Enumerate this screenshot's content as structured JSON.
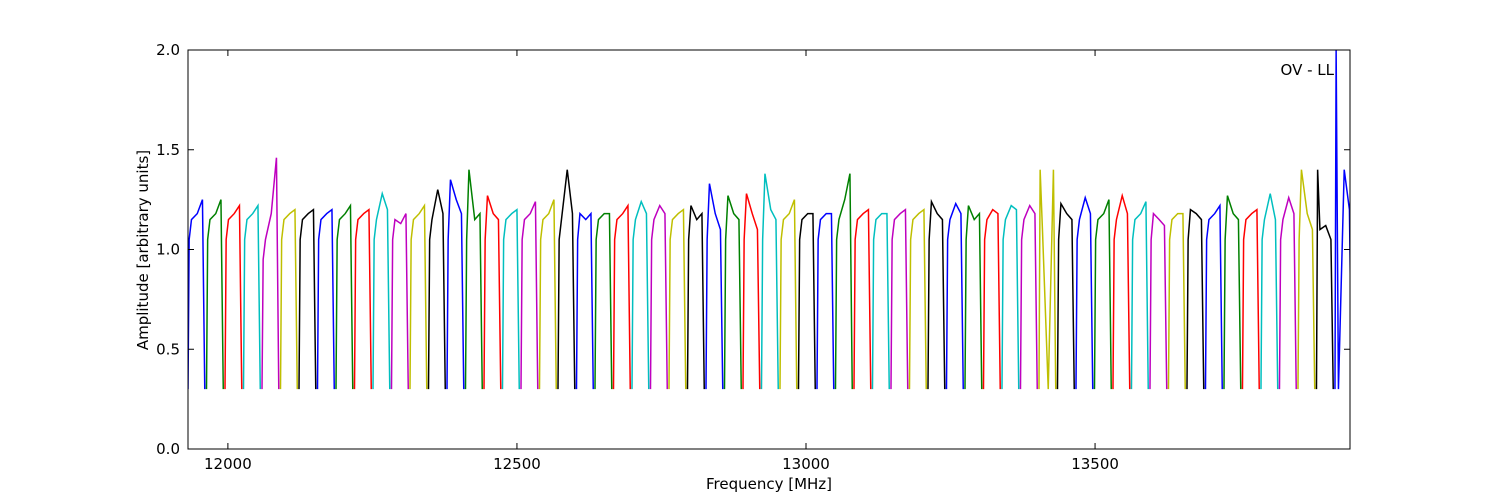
{
  "chart_data": {
    "type": "line",
    "xlabel": "Frequency [MHz]",
    "ylabel": "Amplitude [arbitrary units]",
    "annotation": "OV - LL",
    "xlim": [
      11931,
      13941
    ],
    "ylim": [
      0,
      2
    ],
    "xticks": [
      12000,
      12500,
      13000,
      13500
    ],
    "yticks": [
      {
        "value": 0,
        "label": "0.0"
      },
      {
        "value": 0.5,
        "label": "0.5"
      },
      {
        "value": 1,
        "label": "1.0"
      },
      {
        "value": 1.5,
        "label": "1.5"
      },
      {
        "value": 2,
        "label": "2.0"
      }
    ],
    "series": [
      {
        "color": "#0000ff",
        "x": [
          11931,
          11933,
          11937,
          11947,
          11956,
          11960
        ],
        "values": [
          0.3,
          1.05,
          1.15,
          1.18,
          1.25,
          0.3
        ]
      },
      {
        "color": "#008000",
        "x": [
          11963,
          11965,
          11969,
          11979,
          11988,
          11992
        ],
        "values": [
          0.3,
          1.05,
          1.15,
          1.18,
          1.25,
          0.3
        ]
      },
      {
        "color": "#ff0000",
        "x": [
          11995,
          11997,
          12001,
          12011,
          12020,
          12024
        ],
        "values": [
          0.3,
          1.05,
          1.15,
          1.18,
          1.22,
          0.3
        ]
      },
      {
        "color": "#00bfbf",
        "x": [
          12027,
          12029,
          12033,
          12043,
          12052,
          12056
        ],
        "values": [
          0.3,
          1.05,
          1.15,
          1.18,
          1.22,
          0.3
        ]
      },
      {
        "color": "#bf00bf",
        "x": [
          12059,
          12061,
          12065,
          12075,
          12084,
          12088
        ],
        "values": [
          0.3,
          0.95,
          1.05,
          1.18,
          1.46,
          0.3
        ]
      },
      {
        "color": "#bfbf00",
        "x": [
          12091,
          12093,
          12097,
          12107,
          12116,
          12120
        ],
        "values": [
          0.3,
          1.05,
          1.15,
          1.18,
          1.2,
          0.3
        ]
      },
      {
        "color": "#000000",
        "x": [
          12123,
          12125,
          12129,
          12139,
          12148,
          12152
        ],
        "values": [
          0.3,
          1.05,
          1.15,
          1.18,
          1.2,
          0.3
        ]
      },
      {
        "color": "#0000ff",
        "x": [
          12155,
          12157,
          12161,
          12171,
          12180,
          12184
        ],
        "values": [
          0.3,
          1.05,
          1.15,
          1.18,
          1.2,
          0.3
        ]
      },
      {
        "color": "#008000",
        "x": [
          12187,
          12189,
          12193,
          12203,
          12212,
          12216
        ],
        "values": [
          0.3,
          1.05,
          1.15,
          1.18,
          1.22,
          0.3
        ]
      },
      {
        "color": "#ff0000",
        "x": [
          12219,
          12221,
          12225,
          12235,
          12244,
          12248
        ],
        "values": [
          0.3,
          1.05,
          1.15,
          1.18,
          1.2,
          0.3
        ]
      },
      {
        "color": "#00bfbf",
        "x": [
          12251,
          12253,
          12257,
          12267,
          12276,
          12280
        ],
        "values": [
          0.3,
          1.05,
          1.15,
          1.28,
          1.2,
          0.3
        ]
      },
      {
        "color": "#bf00bf",
        "x": [
          12283,
          12285,
          12289,
          12299,
          12308,
          12312
        ],
        "values": [
          0.3,
          1.05,
          1.15,
          1.13,
          1.18,
          0.3
        ]
      },
      {
        "color": "#bfbf00",
        "x": [
          12315,
          12317,
          12321,
          12331,
          12340,
          12344
        ],
        "values": [
          0.3,
          1.05,
          1.15,
          1.18,
          1.22,
          0.3
        ]
      },
      {
        "color": "#000000",
        "x": [
          12347,
          12349,
          12353,
          12363,
          12372,
          12376
        ],
        "values": [
          0.3,
          1.05,
          1.15,
          1.3,
          1.18,
          0.3
        ]
      },
      {
        "color": "#0000ff",
        "x": [
          12379,
          12381,
          12385,
          12395,
          12404,
          12408
        ],
        "values": [
          0.3,
          1.05,
          1.35,
          1.25,
          1.18,
          0.3
        ]
      },
      {
        "color": "#008000",
        "x": [
          12411,
          12413,
          12417,
          12427,
          12436,
          12440
        ],
        "values": [
          0.3,
          1.05,
          1.4,
          1.15,
          1.18,
          0.3
        ]
      },
      {
        "color": "#ff0000",
        "x": [
          12443,
          12445,
          12449,
          12459,
          12468,
          12472
        ],
        "values": [
          0.3,
          1.05,
          1.27,
          1.18,
          1.15,
          0.3
        ]
      },
      {
        "color": "#00bfbf",
        "x": [
          12475,
          12477,
          12481,
          12491,
          12500,
          12504
        ],
        "values": [
          0.3,
          1.05,
          1.15,
          1.18,
          1.2,
          0.3
        ]
      },
      {
        "color": "#bf00bf",
        "x": [
          12507,
          12509,
          12513,
          12523,
          12532,
          12536
        ],
        "values": [
          0.3,
          1.05,
          1.15,
          1.18,
          1.24,
          0.3
        ]
      },
      {
        "color": "#bfbf00",
        "x": [
          12539,
          12541,
          12545,
          12555,
          12564,
          12568
        ],
        "values": [
          0.3,
          1.05,
          1.15,
          1.18,
          1.25,
          0.3
        ]
      },
      {
        "color": "#000000",
        "x": [
          12571,
          12573,
          12577,
          12587,
          12596,
          12600
        ],
        "values": [
          0.3,
          1.05,
          1.15,
          1.4,
          1.18,
          0.3
        ]
      },
      {
        "color": "#0000ff",
        "x": [
          12603,
          12605,
          12609,
          12619,
          12628,
          12632
        ],
        "values": [
          0.3,
          1.05,
          1.18,
          1.15,
          1.18,
          0.3
        ]
      },
      {
        "color": "#008000",
        "x": [
          12635,
          12637,
          12641,
          12651,
          12660,
          12664
        ],
        "values": [
          0.3,
          1.05,
          1.15,
          1.18,
          1.18,
          0.3
        ]
      },
      {
        "color": "#ff0000",
        "x": [
          12667,
          12669,
          12673,
          12683,
          12692,
          12696
        ],
        "values": [
          0.3,
          1.05,
          1.15,
          1.18,
          1.22,
          0.3
        ]
      },
      {
        "color": "#00bfbf",
        "x": [
          12699,
          12701,
          12705,
          12715,
          12724,
          12728
        ],
        "values": [
          0.3,
          1.05,
          1.15,
          1.24,
          1.18,
          0.3
        ]
      },
      {
        "color": "#bf00bf",
        "x": [
          12731,
          12733,
          12737,
          12747,
          12756,
          12760
        ],
        "values": [
          0.3,
          1.05,
          1.15,
          1.22,
          1.18,
          0.3
        ]
      },
      {
        "color": "#bfbf00",
        "x": [
          12763,
          12765,
          12769,
          12779,
          12788,
          12792
        ],
        "values": [
          0.3,
          1.05,
          1.15,
          1.18,
          1.2,
          0.3
        ]
      },
      {
        "color": "#000000",
        "x": [
          12795,
          12797,
          12801,
          12811,
          12820,
          12824
        ],
        "values": [
          0.3,
          1.05,
          1.22,
          1.15,
          1.18,
          0.3
        ]
      },
      {
        "color": "#0000ff",
        "x": [
          12827,
          12829,
          12833,
          12843,
          12852,
          12856
        ],
        "values": [
          0.3,
          1.05,
          1.33,
          1.18,
          1.1,
          0.3
        ]
      },
      {
        "color": "#008000",
        "x": [
          12859,
          12861,
          12865,
          12875,
          12884,
          12888
        ],
        "values": [
          0.3,
          1.05,
          1.27,
          1.18,
          1.15,
          0.3
        ]
      },
      {
        "color": "#ff0000",
        "x": [
          12891,
          12893,
          12897,
          12907,
          12916,
          12920
        ],
        "values": [
          0.3,
          1.05,
          1.28,
          1.18,
          1.1,
          0.3
        ]
      },
      {
        "color": "#00bfbf",
        "x": [
          12923,
          12925,
          12929,
          12939,
          12948,
          12952
        ],
        "values": [
          0.3,
          1.05,
          1.38,
          1.2,
          1.15,
          0.3
        ]
      },
      {
        "color": "#bfbf00",
        "x": [
          12955,
          12957,
          12961,
          12971,
          12980,
          12984
        ],
        "values": [
          0.3,
          1.05,
          1.15,
          1.18,
          1.25,
          0.3
        ]
      },
      {
        "color": "#000000",
        "x": [
          12987,
          12989,
          12993,
          13003,
          13012,
          13016
        ],
        "values": [
          0.3,
          1.05,
          1.15,
          1.18,
          1.18,
          0.3
        ]
      },
      {
        "color": "#0000ff",
        "x": [
          13019,
          13021,
          13025,
          13035,
          13044,
          13048
        ],
        "values": [
          0.3,
          1.05,
          1.15,
          1.18,
          1.18,
          0.3
        ]
      },
      {
        "color": "#008000",
        "x": [
          13051,
          13053,
          13057,
          13067,
          13076,
          13080
        ],
        "values": [
          0.3,
          1.05,
          1.15,
          1.25,
          1.38,
          0.3
        ]
      },
      {
        "color": "#ff0000",
        "x": [
          13083,
          13085,
          13089,
          13099,
          13108,
          13112
        ],
        "values": [
          0.3,
          1.05,
          1.15,
          1.18,
          1.2,
          0.3
        ]
      },
      {
        "color": "#00bfbf",
        "x": [
          13115,
          13117,
          13121,
          13131,
          13140,
          13144
        ],
        "values": [
          0.3,
          1.05,
          1.15,
          1.18,
          1.18,
          0.3
        ]
      },
      {
        "color": "#bf00bf",
        "x": [
          13147,
          13149,
          13153,
          13163,
          13172,
          13176
        ],
        "values": [
          0.3,
          1.05,
          1.15,
          1.18,
          1.2,
          0.3
        ]
      },
      {
        "color": "#bfbf00",
        "x": [
          13179,
          13181,
          13185,
          13195,
          13204,
          13208
        ],
        "values": [
          0.3,
          1.05,
          1.15,
          1.18,
          1.2,
          0.3
        ]
      },
      {
        "color": "#000000",
        "x": [
          13211,
          13213,
          13217,
          13227,
          13236,
          13240
        ],
        "values": [
          0.3,
          1.05,
          1.24,
          1.18,
          1.15,
          0.3
        ]
      },
      {
        "color": "#0000ff",
        "x": [
          13243,
          13245,
          13249,
          13259,
          13268,
          13272
        ],
        "values": [
          0.3,
          1.05,
          1.15,
          1.23,
          1.18,
          0.3
        ]
      },
      {
        "color": "#008000",
        "x": [
          13275,
          13277,
          13281,
          13291,
          13300,
          13304
        ],
        "values": [
          0.3,
          1.05,
          1.22,
          1.15,
          1.18,
          0.3
        ]
      },
      {
        "color": "#ff0000",
        "x": [
          13307,
          13309,
          13313,
          13323,
          13332,
          13336
        ],
        "values": [
          0.3,
          1.05,
          1.15,
          1.2,
          1.18,
          0.3
        ]
      },
      {
        "color": "#00bfbf",
        "x": [
          13339,
          13341,
          13345,
          13355,
          13364,
          13368
        ],
        "values": [
          0.3,
          1.05,
          1.15,
          1.22,
          1.2,
          0.3
        ]
      },
      {
        "color": "#bf00bf",
        "x": [
          13371,
          13373,
          13377,
          13387,
          13396,
          13400
        ],
        "values": [
          0.3,
          1.05,
          1.15,
          1.22,
          1.18,
          0.3
        ]
      },
      {
        "color": "#bfbf00",
        "x": [
          13403,
          13405,
          13409,
          13419,
          13428,
          13432
        ],
        "values": [
          0.3,
          1.4,
          1.1,
          0.3,
          1.4,
          0.3
        ]
      },
      {
        "color": "#000000",
        "x": [
          13435,
          13437,
          13441,
          13451,
          13460,
          13464
        ],
        "values": [
          0.3,
          1.05,
          1.23,
          1.18,
          1.15,
          0.3
        ]
      },
      {
        "color": "#0000ff",
        "x": [
          13467,
          13469,
          13473,
          13483,
          13492,
          13496
        ],
        "values": [
          0.3,
          1.05,
          1.15,
          1.26,
          1.18,
          0.3
        ]
      },
      {
        "color": "#008000",
        "x": [
          13499,
          13501,
          13505,
          13515,
          13524,
          13528
        ],
        "values": [
          0.3,
          1.05,
          1.15,
          1.18,
          1.25,
          0.3
        ]
      },
      {
        "color": "#ff0000",
        "x": [
          13531,
          13533,
          13537,
          13547,
          13556,
          13560
        ],
        "values": [
          0.3,
          1.05,
          1.15,
          1.27,
          1.18,
          0.3
        ]
      },
      {
        "color": "#00bfbf",
        "x": [
          13563,
          13565,
          13569,
          13579,
          13588,
          13592
        ],
        "values": [
          0.3,
          1.05,
          1.15,
          1.18,
          1.24,
          0.3
        ]
      },
      {
        "color": "#bf00bf",
        "x": [
          13595,
          13597,
          13601,
          13611,
          13620,
          13624
        ],
        "values": [
          0.3,
          1.05,
          1.18,
          1.15,
          1.12,
          0.3
        ]
      },
      {
        "color": "#bfbf00",
        "x": [
          13627,
          13629,
          13633,
          13643,
          13652,
          13656
        ],
        "values": [
          0.3,
          1.05,
          1.15,
          1.18,
          1.18,
          0.3
        ]
      },
      {
        "color": "#000000",
        "x": [
          13659,
          13661,
          13665,
          13675,
          13684,
          13688
        ],
        "values": [
          0.3,
          1.05,
          1.2,
          1.18,
          1.15,
          0.3
        ]
      },
      {
        "color": "#0000ff",
        "x": [
          13691,
          13693,
          13697,
          13707,
          13716,
          13720
        ],
        "values": [
          0.3,
          1.05,
          1.15,
          1.18,
          1.22,
          0.3
        ]
      },
      {
        "color": "#008000",
        "x": [
          13723,
          13725,
          13729,
          13739,
          13748,
          13752
        ],
        "values": [
          0.3,
          1.05,
          1.27,
          1.18,
          1.15,
          0.3
        ]
      },
      {
        "color": "#ff0000",
        "x": [
          13755,
          13757,
          13761,
          13771,
          13780,
          13784
        ],
        "values": [
          0.3,
          1.05,
          1.15,
          1.18,
          1.2,
          0.3
        ]
      },
      {
        "color": "#00bfbf",
        "x": [
          13787,
          13789,
          13793,
          13803,
          13812,
          13816
        ],
        "values": [
          0.3,
          1.05,
          1.15,
          1.28,
          1.15,
          0.3
        ]
      },
      {
        "color": "#bf00bf",
        "x": [
          13819,
          13821,
          13825,
          13835,
          13844,
          13848
        ],
        "values": [
          0.3,
          1.05,
          1.15,
          1.26,
          1.18,
          0.3
        ]
      },
      {
        "color": "#bfbf00",
        "x": [
          13851,
          13853,
          13857,
          13867,
          13876,
          13880
        ],
        "values": [
          0.3,
          1.05,
          1.4,
          1.18,
          1.1,
          0.3
        ]
      },
      {
        "color": "#000000",
        "x": [
          13883,
          13885,
          13889,
          13899,
          13908,
          13912
        ],
        "values": [
          0.3,
          1.4,
          1.1,
          1.12,
          1.05,
          0.3
        ]
      },
      {
        "color": "#0000ff",
        "x": [
          13915,
          13917,
          13921,
          13931,
          13940,
          13944
        ],
        "values": [
          0.3,
          2,
          0.3,
          1.4,
          1.2,
          0.3
        ]
      }
    ]
  }
}
